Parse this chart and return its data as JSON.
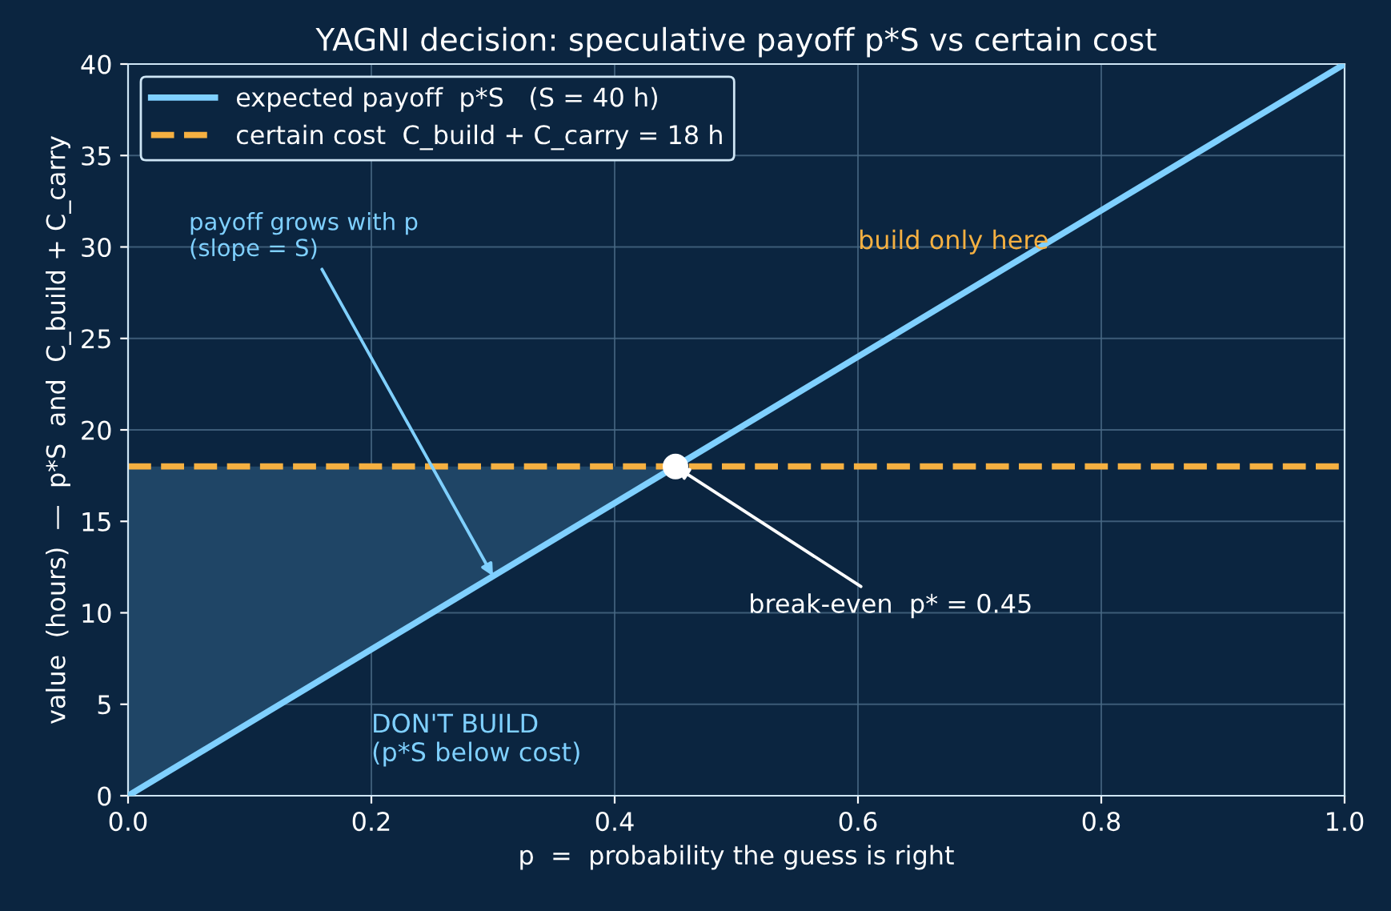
{
  "chart_data": {
    "type": "line",
    "title": "YAGNI decision: speculative payoff p*S vs certain cost",
    "xlabel": "p  =  probability the guess is right",
    "ylabel": "value  (hours)  —  p*S  and  C_build + C_carry",
    "series": [
      {
        "name": "expected payoff  p*S   (S = 40 h)",
        "color": "#7fd0ff",
        "x": [
          0,
          0.45,
          1
        ],
        "values": [
          0,
          18,
          40
        ],
        "lower": [
          0,
          18,
          null
        ],
        "upper": [
          18,
          18,
          null
        ],
        "line_style": "solid"
      },
      {
        "type": "scatter",
        "color": "#ffffff",
        "x": [
          0.45
        ],
        "values": [
          18
        ],
        "marker": "circle"
      }
    ],
    "ref_lines": [
      {
        "axis": "y",
        "value": 18,
        "label": "certain cost  C_build + C_carry = 18 h",
        "color": "#f5b041",
        "line_style": "dashed"
      }
    ],
    "annotations": [
      {
        "text": "payoff grows with p\n(slope = S)",
        "x": 0.3,
        "y": 12
      },
      {
        "text": "break-even  p* = 0.45",
        "x": 0.45,
        "y": 18
      },
      "build only here",
      "DON'T BUILD\n(p*S below cost)"
    ],
    "xlim": [
      0,
      1
    ],
    "ylim": [
      0,
      40
    ],
    "xticks": [
      {
        "value": 0,
        "label": "0.0"
      },
      0.2,
      0.4,
      0.6,
      0.8,
      {
        "value": 1,
        "label": "1.0"
      }
    ],
    "yticks": [
      0,
      5,
      10,
      15,
      20,
      25,
      30,
      35,
      40
    ],
    "grid": true,
    "legend": "top left"
  }
}
